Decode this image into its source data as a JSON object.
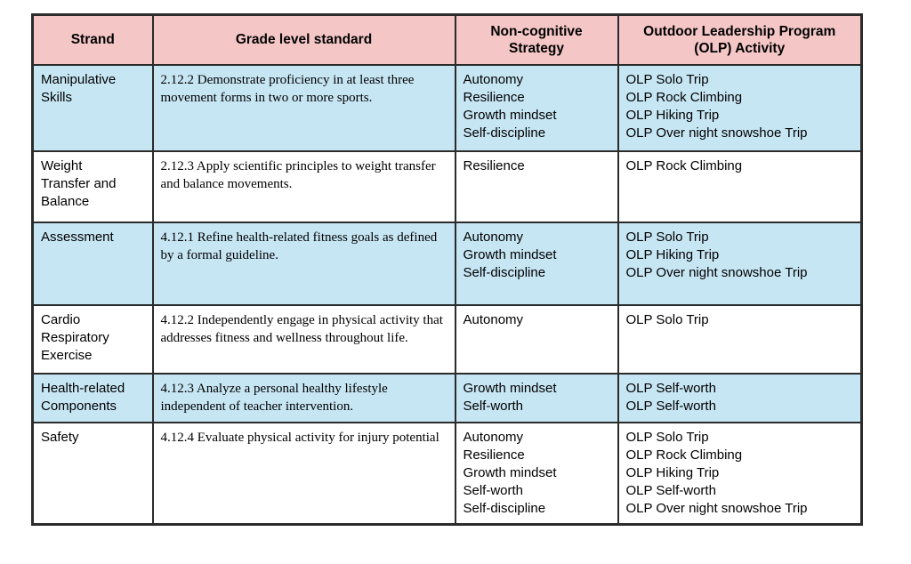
{
  "colors": {
    "header_bg": "#f4c6c6",
    "row_highlight_bg": "#c7e6f4",
    "row_plain_bg": "#ffffff",
    "border": "#2b2b2b",
    "text": "#000000"
  },
  "table": {
    "columns": [
      {
        "label": "Strand"
      },
      {
        "label": "Grade level standard"
      },
      {
        "label": "Non-cognitive\nStrategy"
      },
      {
        "label": "Outdoor Leadership Program\n(OLP) Activity"
      }
    ],
    "rows": [
      {
        "strand": "Manipulative\nSkills",
        "standard": "2.12.2 Demonstrate proficiency in at least three movement forms in two or more sports.",
        "strategies": [
          "Autonomy",
          "Resilience",
          "Growth mindset",
          "Self-discipline"
        ],
        "activities": [
          "OLP Solo Trip",
          "OLP Rock Climbing",
          "OLP Hiking Trip",
          "OLP Over night snowshoe Trip"
        ]
      },
      {
        "strand": "Weight\nTransfer and\nBalance",
        "standard": "2.12.3 Apply scientific principles to weight transfer and balance movements.",
        "strategies": [
          "Resilience"
        ],
        "activities": [
          "OLP Rock Climbing"
        ]
      },
      {
        "strand": "Assessment",
        "standard": "4.12.1 Refine health-related fitness goals as defined by a formal guideline.",
        "strategies": [
          "Autonomy",
          "Growth mindset",
          "Self-discipline"
        ],
        "activities": [
          "OLP Solo Trip",
          "OLP Hiking Trip",
          "OLP Over night snowshoe Trip"
        ]
      },
      {
        "strand": "Cardio\nRespiratory\nExercise",
        "standard": "4.12.2 Independently engage in physical activity that addresses fitness and wellness throughout life.",
        "strategies": [
          "Autonomy"
        ],
        "activities": [
          "OLP Solo Trip"
        ]
      },
      {
        "strand": "Health-related\nComponents",
        "standard": "4.12.3 Analyze a personal healthy lifestyle independent of teacher intervention.",
        "strategies": [
          "Growth mindset",
          "Self-worth"
        ],
        "activities": [
          "OLP Self-worth",
          "OLP Self-worth"
        ]
      },
      {
        "strand": "Safety",
        "standard": "4.12.4 Evaluate physical activity for injury potential",
        "strategies": [
          "Autonomy",
          "Resilience",
          "Growth mindset",
          "Self-worth",
          "Self-discipline"
        ],
        "activities": [
          "OLP Solo Trip",
          "OLP Rock Climbing",
          "OLP Hiking Trip",
          "OLP Self-worth",
          "OLP Over night snowshoe Trip"
        ]
      }
    ]
  }
}
